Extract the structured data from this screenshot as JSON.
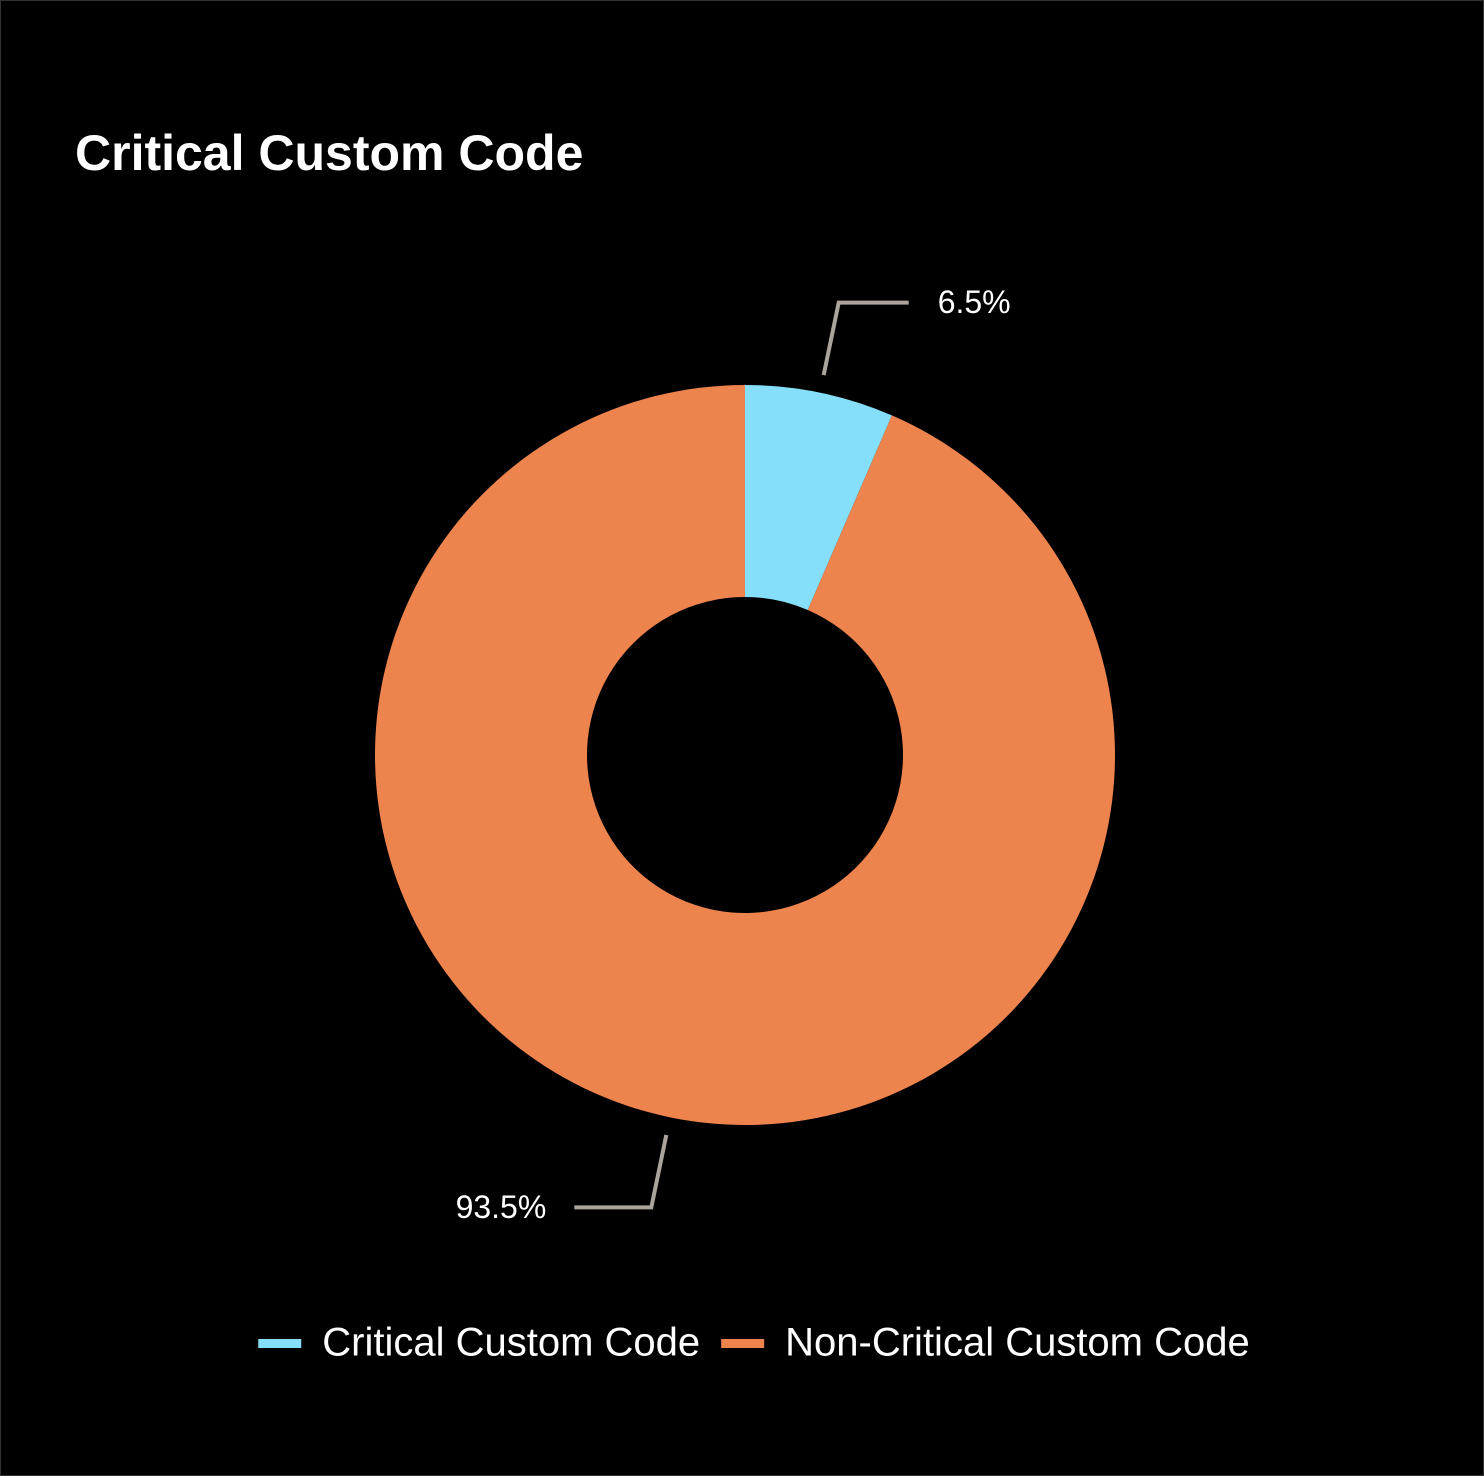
{
  "chart_data": {
    "type": "pie",
    "donut": true,
    "title": "Critical Custom Code",
    "categories": [
      "Critical Custom Code",
      "Non-Critical Custom Code"
    ],
    "values": [
      6.5,
      93.5
    ],
    "value_labels": [
      "6.5%",
      "93.5%"
    ],
    "colors": [
      "#86dffa",
      "#ed834d"
    ],
    "legend": "bottom"
  }
}
